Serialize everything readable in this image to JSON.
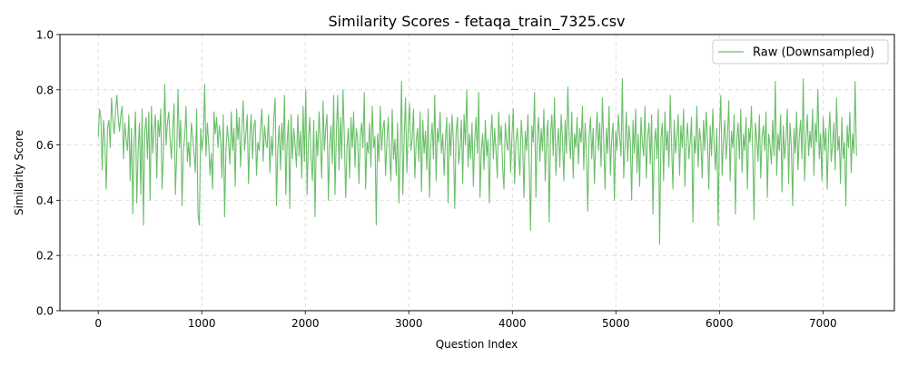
{
  "chart_data": {
    "type": "line",
    "title": "Similarity Scores - fetaqa_train_7325.csv",
    "xlabel": "Question Index",
    "ylabel": "Similarity Score",
    "xlim": [
      -370,
      7690
    ],
    "ylim": [
      0.0,
      1.0
    ],
    "xticks": [
      0,
      1000,
      2000,
      3000,
      4000,
      5000,
      6000,
      7000
    ],
    "yticks": [
      0.0,
      0.2,
      0.4,
      0.6,
      0.8,
      1.0
    ],
    "xtick_labels": [
      "0",
      "1000",
      "2000",
      "3000",
      "4000",
      "5000",
      "6000",
      "7000"
    ],
    "ytick_labels": [
      "0.0",
      "0.2",
      "0.4",
      "0.6",
      "0.8",
      "1.0"
    ],
    "grid": true,
    "legend_position": "top-right",
    "colors": {
      "series": "#6abf69",
      "axes": "#000000",
      "grid": "#b0b0b0"
    },
    "series": [
      {
        "name": "Raw (Downsampled)",
        "x_start": 0,
        "x_end": 7324,
        "values": [
          0.63,
          0.73,
          0.7,
          0.51,
          0.69,
          0.61,
          0.44,
          0.66,
          0.69,
          0.59,
          0.77,
          0.69,
          0.64,
          0.72,
          0.78,
          0.7,
          0.65,
          0.71,
          0.74,
          0.55,
          0.68,
          0.62,
          0.58,
          0.71,
          0.47,
          0.66,
          0.35,
          0.61,
          0.72,
          0.39,
          0.58,
          0.68,
          0.42,
          0.73,
          0.31,
          0.65,
          0.7,
          0.55,
          0.72,
          0.4,
          0.74,
          0.57,
          0.66,
          0.71,
          0.48,
          0.69,
          0.63,
          0.73,
          0.44,
          0.57,
          0.82,
          0.6,
          0.68,
          0.72,
          0.62,
          0.55,
          0.66,
          0.75,
          0.42,
          0.57,
          0.8,
          0.59,
          0.69,
          0.38,
          0.58,
          0.63,
          0.74,
          0.54,
          0.61,
          0.52,
          0.68,
          0.63,
          0.57,
          0.5,
          0.73,
          0.35,
          0.31,
          0.66,
          0.58,
          0.63,
          0.82,
          0.56,
          0.68,
          0.61,
          0.49,
          0.57,
          0.44,
          0.72,
          0.64,
          0.7,
          0.59,
          0.67,
          0.62,
          0.48,
          0.71,
          0.34,
          0.58,
          0.67,
          0.61,
          0.53,
          0.72,
          0.58,
          0.66,
          0.45,
          0.73,
          0.62,
          0.7,
          0.52,
          0.66,
          0.76,
          0.58,
          0.64,
          0.71,
          0.46,
          0.63,
          0.71,
          0.55,
          0.67,
          0.69,
          0.49,
          0.61,
          0.58,
          0.66,
          0.73,
          0.54,
          0.67,
          0.61,
          0.59,
          0.71,
          0.5,
          0.63,
          0.56,
          0.7,
          0.77,
          0.38,
          0.59,
          0.67,
          0.51,
          0.68,
          0.58,
          0.78,
          0.42,
          0.61,
          0.69,
          0.37,
          0.71,
          0.55,
          0.66,
          0.6,
          0.52,
          0.71,
          0.56,
          0.65,
          0.48,
          0.74,
          0.54,
          0.8,
          0.42,
          0.62,
          0.7,
          0.55,
          0.47,
          0.69,
          0.34,
          0.65,
          0.56,
          0.72,
          0.61,
          0.48,
          0.76,
          0.58,
          0.66,
          0.71,
          0.4,
          0.6,
          0.67,
          0.53,
          0.78,
          0.42,
          0.64,
          0.78,
          0.51,
          0.7,
          0.55,
          0.8,
          0.63,
          0.41,
          0.59,
          0.66,
          0.48,
          0.7,
          0.59,
          0.72,
          0.52,
          0.66,
          0.62,
          0.46,
          0.63,
          0.68,
          0.59,
          0.79,
          0.44,
          0.61,
          0.57,
          0.68,
          0.52,
          0.74,
          0.59,
          0.63,
          0.31,
          0.64,
          0.54,
          0.74,
          0.58,
          0.66,
          0.69,
          0.49,
          0.61,
          0.7,
          0.57,
          0.47,
          0.73,
          0.55,
          0.62,
          0.49,
          0.68,
          0.39,
          0.58,
          0.83,
          0.42,
          0.63,
          0.77,
          0.5,
          0.66,
          0.75,
          0.58,
          0.62,
          0.73,
          0.48,
          0.61,
          0.66,
          0.54,
          0.72,
          0.43,
          0.69,
          0.57,
          0.65,
          0.51,
          0.73,
          0.41,
          0.6,
          0.68,
          0.55,
          0.78,
          0.47,
          0.66,
          0.61,
          0.72,
          0.57,
          0.64,
          0.49,
          0.62,
          0.7,
          0.39,
          0.68,
          0.56,
          0.71,
          0.61,
          0.37,
          0.64,
          0.7,
          0.53,
          0.59,
          0.69,
          0.46,
          0.71,
          0.6,
          0.8,
          0.52,
          0.64,
          0.55,
          0.68,
          0.45,
          0.61,
          0.7,
          0.57,
          0.79,
          0.41,
          0.58,
          0.64,
          0.51,
          0.69,
          0.56,
          0.62,
          0.39,
          0.63,
          0.71,
          0.55,
          0.66,
          0.58,
          0.48,
          0.72,
          0.6,
          0.67,
          0.52,
          0.44,
          0.68,
          0.61,
          0.58,
          0.71,
          0.5,
          0.63,
          0.73,
          0.46,
          0.61,
          0.66,
          0.57,
          0.49,
          0.69,
          0.62,
          0.41,
          0.65,
          0.58,
          0.71,
          0.52,
          0.29,
          0.67,
          0.61,
          0.79,
          0.41,
          0.63,
          0.7,
          0.54,
          0.66,
          0.58,
          0.73,
          0.47,
          0.62,
          0.69,
          0.32,
          0.64,
          0.71,
          0.56,
          0.77,
          0.49,
          0.6,
          0.66,
          0.52,
          0.71,
          0.62,
          0.47,
          0.69,
          0.57,
          0.81,
          0.63,
          0.55,
          0.72,
          0.48,
          0.64,
          0.59,
          0.7,
          0.53,
          0.66,
          0.61,
          0.74,
          0.51,
          0.68,
          0.57,
          0.36,
          0.63,
          0.7,
          0.55,
          0.66,
          0.46,
          0.62,
          0.72,
          0.58,
          0.68,
          0.52,
          0.77,
          0.61,
          0.44,
          0.66,
          0.57,
          0.74,
          0.49,
          0.62,
          0.68,
          0.4,
          0.65,
          0.58,
          0.71,
          0.63,
          0.56,
          0.84,
          0.48,
          0.6,
          0.72,
          0.54,
          0.67,
          0.61,
          0.4,
          0.69,
          0.57,
          0.73,
          0.5,
          0.64,
          0.45,
          0.7,
          0.61,
          0.56,
          0.74,
          0.48,
          0.63,
          0.68,
          0.53,
          0.71,
          0.35,
          0.6,
          0.66,
          0.55,
          0.73,
          0.24,
          0.62,
          0.68,
          0.47,
          0.72,
          0.58,
          0.65,
          0.52,
          0.78,
          0.6,
          0.44,
          0.69,
          0.57,
          0.63,
          0.71,
          0.49,
          0.67,
          0.59,
          0.73,
          0.45,
          0.62,
          0.68,
          0.55,
          0.61,
          0.7,
          0.32,
          0.63,
          0.57,
          0.74,
          0.52,
          0.66,
          0.61,
          0.48,
          0.69,
          0.58,
          0.72,
          0.62,
          0.44,
          0.67,
          0.56,
          0.73,
          0.6,
          0.51,
          0.66,
          0.31,
          0.64,
          0.78,
          0.49,
          0.61,
          0.69,
          0.55,
          0.63,
          0.76,
          0.47,
          0.65,
          0.59,
          0.71,
          0.35,
          0.62,
          0.68,
          0.55,
          0.73,
          0.5,
          0.64,
          0.58,
          0.7,
          0.44,
          0.66,
          0.61,
          0.74,
          0.57,
          0.33,
          0.68,
          0.62,
          0.54,
          0.71,
          0.48,
          0.63,
          0.67,
          0.58,
          0.72,
          0.41,
          0.64,
          0.6,
          0.53,
          0.69,
          0.56,
          0.83,
          0.49,
          0.64,
          0.58,
          0.71,
          0.43,
          0.67,
          0.55,
          0.62,
          0.73,
          0.46,
          0.68,
          0.6,
          0.38,
          0.66,
          0.57,
          0.72,
          0.51,
          0.63,
          0.69,
          0.55,
          0.84,
          0.47,
          0.62,
          0.71,
          0.56,
          0.65,
          0.59,
          0.73,
          0.49,
          0.68,
          0.61,
          0.8,
          0.55,
          0.64,
          0.47,
          0.7,
          0.58,
          0.66,
          0.44,
          0.63,
          0.72,
          0.54,
          0.6,
          0.68,
          0.51,
          0.77,
          0.58,
          0.63,
          0.46,
          0.7,
          0.55,
          0.61,
          0.38,
          0.67,
          0.59,
          0.72,
          0.5,
          0.64,
          0.57,
          0.83,
          0.56
        ]
      }
    ]
  }
}
